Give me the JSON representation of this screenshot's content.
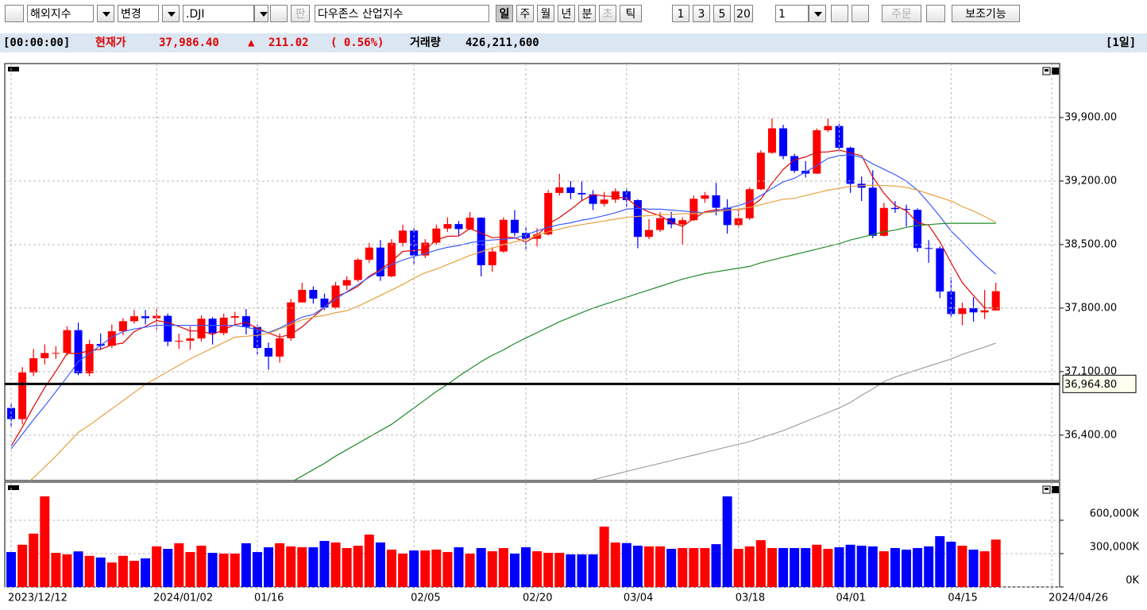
{
  "toolbar": {
    "market": "해외지수",
    "change": "변경",
    "symbol": ".DJI",
    "pan": "판",
    "name": "다우존스 산업지수",
    "periods": [
      "일",
      "주",
      "월",
      "년",
      "분",
      "초",
      "틱"
    ],
    "counts": [
      "1",
      "3",
      "5",
      "20"
    ],
    "count_input": "1",
    "order": "주문",
    "aux": "보조기능"
  },
  "header": {
    "time": "[00:00:00]",
    "price_label": "현재가",
    "price": "37,986.40",
    "change_sign": "▲",
    "change": "211.02",
    "pct": "( 0.56%)",
    "volume_label": "거래량",
    "volume": "426,211,600",
    "period": "[1일]"
  },
  "chart_data": [
    {
      "type": "candlestick",
      "up_color": "#ff0000",
      "down_color": "#0000ff",
      "open": [
        36700,
        36577,
        37090,
        37248,
        37305,
        37306,
        37557,
        37082,
        37404,
        37385,
        37545,
        37656,
        37710,
        37689,
        37715,
        37430,
        37440,
        37466,
        37683,
        37525,
        37695,
        37711,
        37592,
        37361,
        37266,
        37468,
        37863,
        38001,
        37905,
        37806,
        38049,
        38109,
        38333,
        38467,
        38150,
        38519,
        38654,
        38380,
        38521,
        38677,
        38726,
        38671,
        38797,
        38273,
        38424,
        38773,
        38628,
        38564,
        38612,
        39069,
        39131,
        39069,
        39053,
        38949,
        38996,
        39087,
        38990,
        38585,
        38661,
        38791,
        38723,
        38769,
        39005,
        39043,
        38906,
        38715,
        38790,
        39110,
        39512,
        39781,
        39475,
        39313,
        39282,
        39760,
        39807,
        39567,
        39170,
        39127,
        38597,
        38904,
        38892,
        38883,
        38462,
        38459,
        37983,
        37735,
        37799,
        37753,
        37775
      ],
      "high": [
        36760,
        37150,
        37350,
        37400,
        37380,
        37600,
        37640,
        37450,
        37520,
        37620,
        37690,
        37780,
        37780,
        37790,
        37740,
        37520,
        37600,
        37720,
        37700,
        37740,
        37760,
        37790,
        37620,
        37420,
        37520,
        37900,
        38080,
        38040,
        37960,
        38090,
        38150,
        38350,
        38520,
        38550,
        38560,
        38720,
        38680,
        38560,
        38720,
        38800,
        38760,
        38860,
        38800,
        38470,
        38800,
        38880,
        38700,
        38680,
        39100,
        39280,
        39200,
        39200,
        39100,
        39080,
        39120,
        39130,
        39000,
        38780,
        38860,
        38860,
        38800,
        39040,
        39080,
        39180,
        39000,
        38880,
        39130,
        39540,
        39890,
        39820,
        39500,
        39420,
        39780,
        39890,
        39830,
        39580,
        39250,
        39320,
        38960,
        38980,
        38940,
        38900,
        38550,
        38480,
        38140,
        37860,
        37920,
        38000,
        38080
      ],
      "low": [
        36480,
        36520,
        37050,
        37180,
        37240,
        37280,
        37060,
        37050,
        37340,
        37360,
        37500,
        37630,
        37620,
        37560,
        37380,
        37350,
        37340,
        37430,
        37400,
        37500,
        37620,
        37510,
        37290,
        37120,
        37200,
        37440,
        37860,
        37850,
        37780,
        37790,
        38000,
        38090,
        38300,
        38100,
        38140,
        38480,
        38280,
        38350,
        38500,
        38640,
        38600,
        38660,
        38150,
        38200,
        38410,
        38590,
        38450,
        38480,
        38600,
        39040,
        39000,
        38980,
        38880,
        38920,
        38960,
        38920,
        38460,
        38560,
        38640,
        38680,
        38500,
        38760,
        38960,
        38820,
        38620,
        38680,
        38770,
        39100,
        39500,
        39440,
        39290,
        39240,
        39280,
        39740,
        39520,
        39070,
        38980,
        38570,
        38590,
        38850,
        38700,
        38420,
        38300,
        37910,
        37700,
        37610,
        37650,
        37680,
        37770
      ],
      "close": [
        36577,
        37090,
        37248,
        37305,
        37306,
        37557,
        37082,
        37404,
        37385,
        37545,
        37656,
        37710,
        37689,
        37715,
        37430,
        37440,
        37466,
        37683,
        37525,
        37695,
        37711,
        37592,
        37361,
        37266,
        37468,
        37863,
        38001,
        37905,
        37806,
        38049,
        38109,
        38333,
        38467,
        38150,
        38519,
        38654,
        38380,
        38521,
        38677,
        38726,
        38671,
        38797,
        38273,
        38424,
        38773,
        38628,
        38564,
        38612,
        39069,
        39131,
        39069,
        39053,
        38949,
        38996,
        39087,
        38990,
        38585,
        38661,
        38791,
        38723,
        38769,
        39005,
        39043,
        38906,
        38715,
        38790,
        39110,
        39512,
        39781,
        39475,
        39313,
        39282,
        39760,
        39807,
        39567,
        39170,
        39127,
        38597,
        38904,
        38892,
        38883,
        38462,
        38459,
        37983,
        37735,
        37799,
        37753,
        37775,
        37986.4
      ],
      "series": [
        {
          "color": "#e00000",
          "values": [
            36280,
            36487,
            36713,
            36924,
            37105,
            37301,
            37300,
            37331,
            37347,
            37395,
            37415,
            37541,
            37598,
            37664,
            37641,
            37598,
            37549,
            37548,
            37510,
            37563,
            37617,
            37642,
            37578,
            37526,
            37481,
            37511,
            37593,
            37702,
            37810,
            37926,
            37975,
            38041,
            38153,
            38222,
            38316,
            38425,
            38434,
            38445,
            38550,
            38591,
            38594,
            38677,
            38627,
            38576,
            38585,
            38576,
            38529,
            38597,
            38726,
            38798,
            38886,
            38984,
            39051,
            39036,
            39027,
            39011,
            38917,
            38859,
            38818,
            38745,
            38701,
            38785,
            38861,
            38884,
            38882,
            38886,
            38907,
            39001,
            39176,
            39328,
            39433,
            39467,
            39517,
            39522,
            39540,
            39511,
            39480,
            39247,
            39066,
            38931,
            38874,
            38741,
            38713,
            38529,
            38298,
            38081,
            37939,
            37802,
            37803
          ]
        },
        {
          "color": "#3a5cff",
          "values": [
            36250,
            36410,
            36570,
            36720,
            36880,
            37040,
            37210,
            37300,
            37390,
            37480,
            37540,
            37570,
            37590,
            37610,
            37610,
            37610,
            37610,
            37610,
            37610,
            37610,
            37610,
            37590,
            37560,
            37530,
            37580,
            37640,
            37700,
            37730,
            37810,
            37900,
            37980,
            38060,
            38140,
            38210,
            38280,
            38330,
            38370,
            38400,
            38440,
            38470,
            38490,
            38520,
            38540,
            38550,
            38560,
            38570,
            38610,
            38650,
            38690,
            38720,
            38740,
            38770,
            38790,
            38820,
            38850,
            38890,
            38900,
            38890,
            38890,
            38880,
            38870,
            38860,
            38850,
            38870,
            38900,
            38930,
            38970,
            39040,
            39120,
            39190,
            39230,
            39300,
            39370,
            39450,
            39480,
            39490,
            39460,
            39390,
            39330,
            39270,
            39200,
            39100,
            38960,
            38810,
            38650,
            38530,
            38400,
            38280,
            38175
          ]
        },
        {
          "color": "#e8a040",
          "values": [
            35730,
            35830,
            35930,
            36050,
            36170,
            36300,
            36430,
            36510,
            36600,
            36690,
            36780,
            36870,
            36960,
            37030,
            37100,
            37170,
            37240,
            37300,
            37360,
            37420,
            37480,
            37490,
            37500,
            37520,
            37570,
            37620,
            37670,
            37700,
            37720,
            37750,
            37770,
            37820,
            37880,
            37940,
            38000,
            38060,
            38130,
            38190,
            38230,
            38280,
            38330,
            38380,
            38420,
            38460,
            38500,
            38530,
            38560,
            38600,
            38640,
            38670,
            38700,
            38720,
            38740,
            38760,
            38780,
            38800,
            38810,
            38820,
            38830,
            38830,
            38840,
            38840,
            38850,
            38860,
            38880,
            38890,
            38910,
            38940,
            38970,
            39000,
            39010,
            39040,
            39070,
            39100,
            39120,
            39140,
            39150,
            39155,
            39150,
            39145,
            39130,
            39100,
            39060,
            39020,
            38980,
            38920,
            38870,
            38810,
            38745
          ]
        },
        {
          "color": "#1f8a2a",
          "values": [
            null,
            null,
            null,
            null,
            null,
            null,
            null,
            null,
            null,
            null,
            null,
            null,
            null,
            null,
            null,
            null,
            null,
            null,
            null,
            null,
            null,
            null,
            null,
            null,
            null,
            35880,
            35950,
            36020,
            36090,
            36170,
            36240,
            36310,
            36380,
            36450,
            36520,
            36610,
            36700,
            36790,
            36880,
            36960,
            37050,
            37130,
            37210,
            37280,
            37340,
            37410,
            37470,
            37530,
            37590,
            37650,
            37700,
            37750,
            37800,
            37840,
            37880,
            37920,
            37960,
            38000,
            38040,
            38080,
            38120,
            38150,
            38180,
            38200,
            38220,
            38240,
            38260,
            38300,
            38330,
            38360,
            38390,
            38420,
            38450,
            38480,
            38510,
            38550,
            38580,
            38610,
            38640,
            38660,
            38690,
            38710,
            38720,
            38730,
            38735,
            38735,
            38735,
            38735,
            38735
          ]
        },
        {
          "color": "#a0a0a0",
          "values": [
            null,
            null,
            null,
            null,
            null,
            null,
            null,
            null,
            null,
            null,
            null,
            null,
            null,
            null,
            null,
            null,
            null,
            null,
            null,
            null,
            null,
            null,
            null,
            null,
            null,
            null,
            null,
            null,
            null,
            null,
            null,
            null,
            null,
            null,
            null,
            null,
            null,
            null,
            null,
            null,
            null,
            null,
            null,
            null,
            null,
            null,
            null,
            null,
            null,
            null,
            null,
            null,
            35910,
            35940,
            35970,
            36000,
            36030,
            36060,
            36090,
            36120,
            36150,
            36180,
            36210,
            36240,
            36270,
            36300,
            36330,
            36370,
            36410,
            36450,
            36500,
            36550,
            36600,
            36650,
            36700,
            36760,
            36840,
            36910,
            36990,
            37040,
            37080,
            37120,
            37160,
            37200,
            37240,
            37290,
            37330,
            37370,
            37415
          ]
        }
      ],
      "reference_line": {
        "value": 36964.8,
        "label": "36,964.80"
      },
      "xlim": [
        -0.57,
        93.7
      ],
      "xticks": [
        {
          "value": 0,
          "label": "2023/12/12"
        },
        {
          "value": 13,
          "label": "2024/01/02"
        },
        {
          "value": 22,
          "label": "01/16"
        },
        {
          "value": 36,
          "label": "02/05"
        },
        {
          "value": 46,
          "label": "02/20"
        },
        {
          "value": 55,
          "label": "03/04"
        },
        {
          "value": 65,
          "label": "03/18"
        },
        {
          "value": 74,
          "label": "04/01"
        },
        {
          "value": 84,
          "label": "04/15"
        },
        {
          "value": 93,
          "label": "2024/04/26"
        }
      ],
      "ylim": [
        35900,
        40495
      ],
      "yticks": [
        {
          "value": 36400,
          "label": "36,400.00"
        },
        {
          "value": 37100,
          "label": "37,100.00"
        },
        {
          "value": 37800,
          "label": "37,800.00"
        },
        {
          "value": 38500,
          "label": "38,500.00"
        },
        {
          "value": 39200,
          "label": "39,200.00"
        },
        {
          "value": 39900,
          "label": "39,900.00"
        }
      ],
      "grid": true
    },
    {
      "type": "bar",
      "values": [
        314000,
        380000,
        480000,
        815000,
        307000,
        293000,
        320000,
        280000,
        265000,
        220000,
        280000,
        235000,
        257000,
        365000,
        343000,
        393000,
        314000,
        371000,
        307000,
        300000,
        300000,
        393000,
        314000,
        357000,
        393000,
        365000,
        357000,
        357000,
        414000,
        400000,
        350000,
        371000,
        471000,
        400000,
        336000,
        300000,
        328000,
        328000,
        336000,
        314000,
        357000,
        300000,
        350000,
        321000,
        350000,
        300000,
        357000,
        321000,
        307000,
        307000,
        293000,
        293000,
        293000,
        543000,
        400000,
        395000,
        371000,
        365000,
        365000,
        343000,
        350000,
        350000,
        350000,
        385000,
        815000,
        343000,
        365000,
        421000,
        350000,
        350000,
        350000,
        350000,
        380000,
        343000,
        357000,
        380000,
        371000,
        365000,
        321000,
        350000,
        336000,
        350000,
        365000,
        457000,
        407000,
        371000,
        336000,
        321000,
        426212
      ],
      "ylim": [
        0,
        943000
      ],
      "yticks": [
        {
          "value": 0,
          "label": "0K"
        },
        {
          "value": 300000,
          "label": "300,000K"
        },
        {
          "value": 600000,
          "label": "600,000K"
        }
      ],
      "grid": true
    }
  ]
}
